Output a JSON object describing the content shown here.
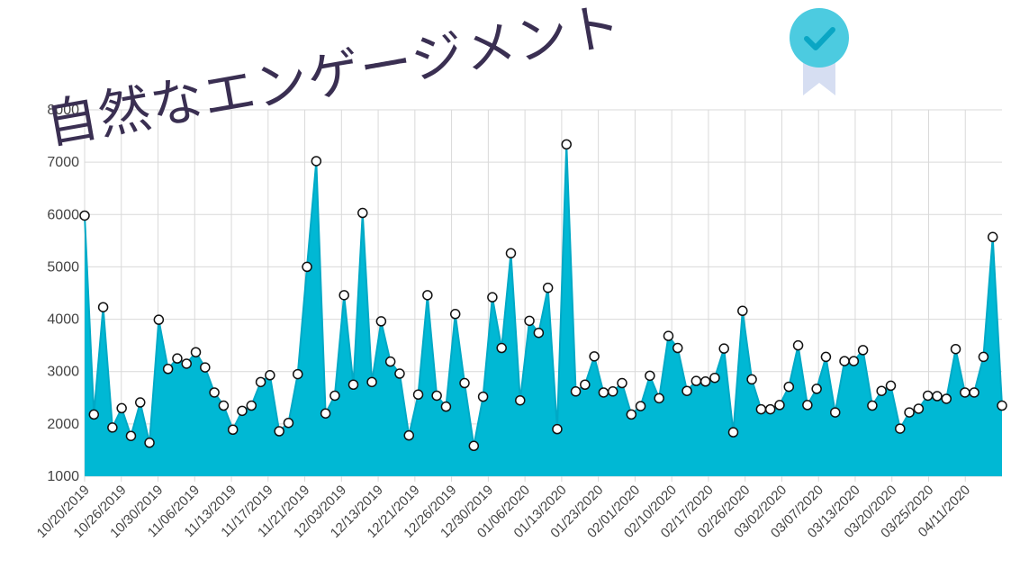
{
  "title": "自然なエンゲージメント",
  "badge_icon": "verified-ribbon-icon",
  "colors": {
    "area": "#00b8d4",
    "line": "#00a9c6",
    "title": "#3a2f52",
    "grid": "#d9d9d9"
  },
  "chart_data": {
    "type": "area",
    "ylim": [
      1000,
      8000
    ],
    "yticks": [
      1000,
      2000,
      3000,
      4000,
      5000,
      6000,
      7000,
      8000
    ],
    "xticks": [
      "10/20/2019",
      "10/26/2019",
      "10/30/2019",
      "11/06/2019",
      "11/13/2019",
      "11/17/2019",
      "11/21/2019",
      "12/03/2019",
      "12/13/2019",
      "12/21/2019",
      "12/26/2019",
      "12/30/2019",
      "01/06/2020",
      "01/13/2020",
      "01/23/2020",
      "02/01/2020",
      "02/10/2020",
      "02/17/2020",
      "02/26/2020",
      "03/02/2020",
      "03/07/2020",
      "03/13/2020",
      "03/20/2020",
      "03/25/2020",
      "04/11/2020"
    ],
    "grid": true,
    "legend": "none",
    "values": [
      5980,
      2180,
      4230,
      1930,
      2300,
      1770,
      2410,
      1640,
      3990,
      3050,
      3250,
      3150,
      3370,
      3080,
      2600,
      2350,
      1890,
      2250,
      2350,
      2800,
      2930,
      1860,
      2020,
      2950,
      5000,
      7020,
      2200,
      2540,
      4460,
      2750,
      6030,
      2800,
      3960,
      3190,
      2960,
      1780,
      2560,
      4460,
      2540,
      2330,
      4100,
      2780,
      1580,
      2520,
      4420,
      3450,
      5260,
      2450,
      3970,
      3740,
      4600,
      1900,
      7340,
      2620,
      2750,
      3290,
      2600,
      2620,
      2780,
      2180,
      2340,
      2920,
      2490,
      3680,
      3450,
      2630,
      2820,
      2810,
      2880,
      3440,
      1840,
      4160,
      2850,
      2280,
      2280,
      2360,
      2710,
      3500,
      2360,
      2670,
      3280,
      2220,
      3200,
      3200,
      3410,
      2350,
      2630,
      2730,
      1910,
      2220,
      2290,
      2540,
      2530,
      2480,
      3430,
      2600,
      2600,
      3280,
      5570,
      2350
    ]
  }
}
